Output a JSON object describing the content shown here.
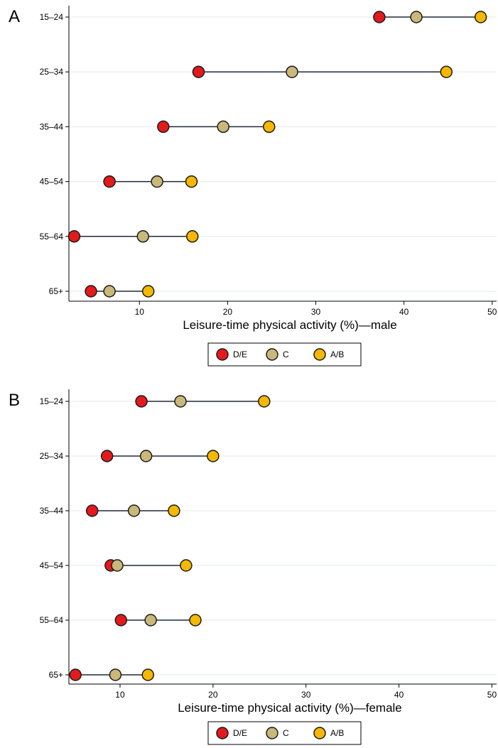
{
  "chart_data": [
    {
      "type": "scatter",
      "panel_label": "A",
      "categories": [
        "15–24",
        "25–34",
        "35–44",
        "45–54",
        "55–64",
        "65+"
      ],
      "series": [
        {
          "name": "D/E",
          "values": [
            37.2,
            16.7,
            12.7,
            6.6,
            2.6,
            4.5
          ],
          "color": "#e31a1c"
        },
        {
          "name": "C",
          "values": [
            41.4,
            27.3,
            19.5,
            12.0,
            10.4,
            6.6
          ],
          "color": "#c9b87a"
        },
        {
          "name": "A/B",
          "values": [
            48.7,
            44.8,
            24.7,
            15.9,
            16.0,
            11.0
          ],
          "color": "#f5b800"
        }
      ],
      "xlabel": "Leisure-time physical activity (%)—male",
      "xlim": [
        2,
        50.5
      ],
      "xticks": [
        10,
        20,
        30,
        40,
        50
      ],
      "grid": true,
      "legend": "bottom"
    },
    {
      "type": "scatter",
      "panel_label": "B",
      "categories": [
        "15–24",
        "25–34",
        "35–44",
        "45–54",
        "55–64",
        "65+"
      ],
      "series": [
        {
          "name": "D/E",
          "values": [
            12.3,
            8.6,
            7.0,
            9.0,
            10.1,
            5.2
          ],
          "color": "#e31a1c"
        },
        {
          "name": "C",
          "values": [
            16.5,
            12.8,
            11.5,
            9.7,
            13.3,
            9.5
          ],
          "color": "#c9b87a"
        },
        {
          "name": "A/B",
          "values": [
            25.5,
            20.0,
            15.8,
            17.1,
            18.1,
            13.0
          ],
          "color": "#f5b800"
        }
      ],
      "xlabel": "Leisure-time physical activity (%)—female",
      "xlim": [
        4.5,
        50.5
      ],
      "xticks": [
        10,
        20,
        30,
        40,
        50
      ],
      "grid": true,
      "legend": "bottom"
    }
  ]
}
